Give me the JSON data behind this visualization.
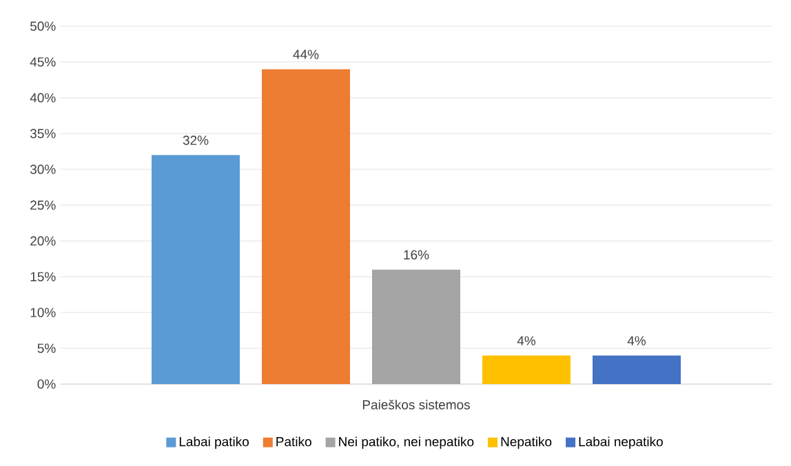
{
  "chart_data": {
    "type": "bar",
    "categories": [
      "Paieškos sistemos"
    ],
    "series": [
      {
        "name": "Labai patiko",
        "color": "#5b9bd5",
        "values": [
          32
        ],
        "value_labels": [
          "32%"
        ]
      },
      {
        "name": "Patiko",
        "color": "#ed7d31",
        "values": [
          44
        ],
        "value_labels": [
          "44%"
        ]
      },
      {
        "name": "Nei patiko, nei nepatiko",
        "color": "#a5a5a5",
        "values": [
          16
        ],
        "value_labels": [
          "16%"
        ]
      },
      {
        "name": "Nepatiko",
        "color": "#ffc000",
        "values": [
          4
        ],
        "value_labels": [
          "4%"
        ]
      },
      {
        "name": "Labai nepatiko",
        "color": "#4472c4",
        "values": [
          4
        ],
        "value_labels": [
          "4%"
        ]
      }
    ],
    "ylim": [
      0,
      50
    ],
    "yticks": [
      {
        "value": 0,
        "label": "0%"
      },
      {
        "value": 5,
        "label": "5%"
      },
      {
        "value": 10,
        "label": "10%"
      },
      {
        "value": 15,
        "label": "15%"
      },
      {
        "value": 20,
        "label": "20%"
      },
      {
        "value": 25,
        "label": "25%"
      },
      {
        "value": 30,
        "label": "30%"
      },
      {
        "value": 35,
        "label": "35%"
      },
      {
        "value": 40,
        "label": "40%"
      },
      {
        "value": 45,
        "label": "45%"
      },
      {
        "value": 50,
        "label": "50%"
      }
    ],
    "grid": "y",
    "legend": "bottom"
  }
}
